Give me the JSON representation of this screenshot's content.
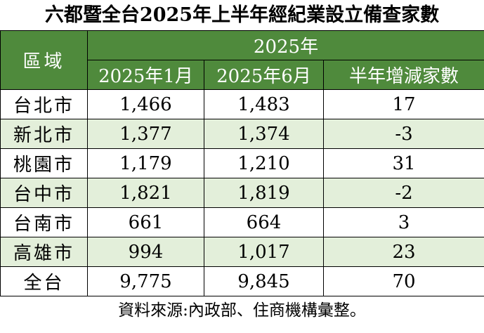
{
  "title": "六都暨全台2025年上半年經紀業設立備查家數",
  "table": {
    "region_header": "區域",
    "year_header": "2025年",
    "col_jan": "2025年1月",
    "col_jun": "2025年6月",
    "col_change": "半年增減家數",
    "rows": [
      {
        "region": "台北市",
        "jan": "1,466",
        "jun": "1,483",
        "change": "17"
      },
      {
        "region": "新北市",
        "jan": "1,377",
        "jun": "1,374",
        "change": "-3"
      },
      {
        "region": "桃園市",
        "jan": "1,179",
        "jun": "1,210",
        "change": "31"
      },
      {
        "region": "台中市",
        "jan": "1,821",
        "jun": "1,819",
        "change": "-2"
      },
      {
        "region": "台南市",
        "jan": "661",
        "jun": "664",
        "change": "3"
      },
      {
        "region": "高雄市",
        "jan": "994",
        "jun": "1,017",
        "change": "23"
      },
      {
        "region": "全台",
        "jan": "9,775",
        "jun": "9,845",
        "change": "70"
      }
    ]
  },
  "source": "資料來源:內政部、住商機構彙整。",
  "colors": {
    "header_bg": "#4f8a3c",
    "header_text": "#ffffff",
    "alt_row_bg": "#e3efda"
  }
}
